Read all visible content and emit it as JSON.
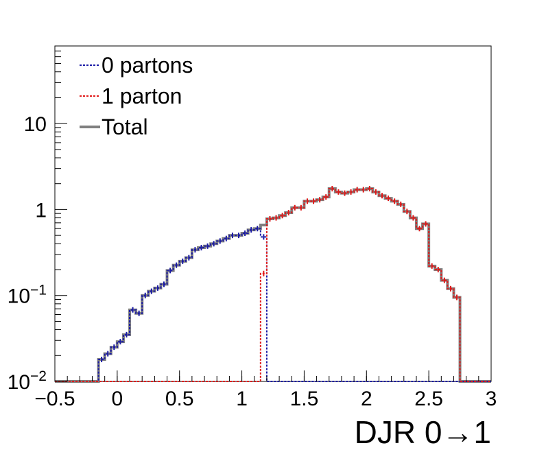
{
  "chart_data": {
    "type": "line",
    "title": "",
    "xlabel": "DJR 0→1",
    "ylabel": "",
    "xlim": [
      -0.5,
      3.0
    ],
    "ylim": [
      0.01,
      80
    ],
    "y_scale": "log",
    "grid": false,
    "legend_position": "top-left",
    "x_tick_labels": [
      "−0.5",
      "0",
      "0.5",
      "1",
      "1.5",
      "2",
      "2.5",
      "3"
    ],
    "x_tick_values": [
      -0.5,
      0,
      0.5,
      1,
      1.5,
      2,
      2.5,
      3
    ],
    "y_tick_labels": [
      {
        "value": 0.01,
        "base": "10",
        "exp": "−2"
      },
      {
        "value": 0.1,
        "base": "10",
        "exp": "−1"
      },
      {
        "value": 1,
        "base": "1",
        "exp": ""
      },
      {
        "value": 10,
        "base": "10",
        "exp": ""
      }
    ],
    "bin_edges": [
      -0.5,
      -0.45,
      -0.4,
      -0.35,
      -0.3,
      -0.25,
      -0.2,
      -0.15,
      -0.1,
      -0.05,
      0,
      0.05,
      0.1,
      0.15,
      0.2,
      0.25,
      0.3,
      0.35,
      0.4,
      0.45,
      0.5,
      0.55,
      0.6,
      0.65,
      0.7,
      0.75,
      0.8,
      0.85,
      0.9,
      0.95,
      1,
      1.05,
      1.1,
      1.15,
      1.2,
      1.25,
      1.3,
      1.35,
      1.4,
      1.45,
      1.5,
      1.55,
      1.6,
      1.65,
      1.7,
      1.75,
      1.8,
      1.85,
      1.9,
      1.95,
      2,
      2.05,
      2.1,
      2.15,
      2.2,
      2.25,
      2.3,
      2.35,
      2.4,
      2.45,
      2.5,
      2.55,
      2.6,
      2.65,
      2.7,
      2.75,
      2.8,
      2.85,
      2.9,
      2.95,
      3
    ],
    "series": [
      {
        "name": "0 partons",
        "color": "#1a1aa6",
        "dash": "dotted",
        "values": [
          0,
          0,
          0,
          0,
          0,
          0,
          0,
          0.018,
          0.021,
          0.025,
          0.029,
          0.035,
          0.068,
          0.062,
          0.1,
          0.112,
          0.122,
          0.135,
          0.195,
          0.225,
          0.25,
          0.275,
          0.34,
          0.36,
          0.375,
          0.4,
          0.43,
          0.46,
          0.5,
          0.5,
          0.53,
          0.58,
          0.6,
          0.48,
          0,
          0,
          0,
          0,
          0,
          0,
          0,
          0,
          0,
          0,
          0,
          0,
          0,
          0,
          0,
          0,
          0,
          0,
          0,
          0,
          0,
          0,
          0,
          0,
          0,
          0,
          0,
          0,
          0,
          0,
          0,
          0,
          0,
          0,
          0,
          0
        ]
      },
      {
        "name": "1 parton",
        "color": "#e01a1a",
        "dash": "dotted",
        "values": [
          0,
          0,
          0,
          0,
          0,
          0,
          0,
          0,
          0,
          0,
          0,
          0,
          0,
          0,
          0,
          0,
          0,
          0,
          0,
          0,
          0,
          0,
          0,
          0,
          0,
          0,
          0,
          0,
          0,
          0,
          0,
          0,
          0,
          0.18,
          0.78,
          0.8,
          0.85,
          0.92,
          1.05,
          1.05,
          1.25,
          1.25,
          1.3,
          1.4,
          1.75,
          1.6,
          1.55,
          1.6,
          1.7,
          1.7,
          1.75,
          1.6,
          1.45,
          1.35,
          1.25,
          1.15,
          0.95,
          0.8,
          0.6,
          0.68,
          0.22,
          0.2,
          0.15,
          0.12,
          0.095,
          0,
          0,
          0,
          0,
          0
        ]
      },
      {
        "name": "Total",
        "color": "#808080",
        "dash": "solid",
        "values": [
          0,
          0,
          0,
          0,
          0,
          0,
          0,
          0.018,
          0.021,
          0.025,
          0.029,
          0.035,
          0.068,
          0.062,
          0.1,
          0.112,
          0.122,
          0.135,
          0.195,
          0.225,
          0.25,
          0.275,
          0.34,
          0.36,
          0.375,
          0.4,
          0.43,
          0.46,
          0.5,
          0.5,
          0.53,
          0.58,
          0.6,
          0.66,
          0.78,
          0.8,
          0.85,
          0.92,
          1.05,
          1.05,
          1.25,
          1.25,
          1.3,
          1.4,
          1.75,
          1.6,
          1.55,
          1.6,
          1.7,
          1.7,
          1.75,
          1.6,
          1.45,
          1.35,
          1.25,
          1.15,
          0.95,
          0.8,
          0.6,
          0.68,
          0.22,
          0.2,
          0.15,
          0.12,
          0.095,
          0,
          0,
          0,
          0,
          0
        ]
      }
    ]
  }
}
